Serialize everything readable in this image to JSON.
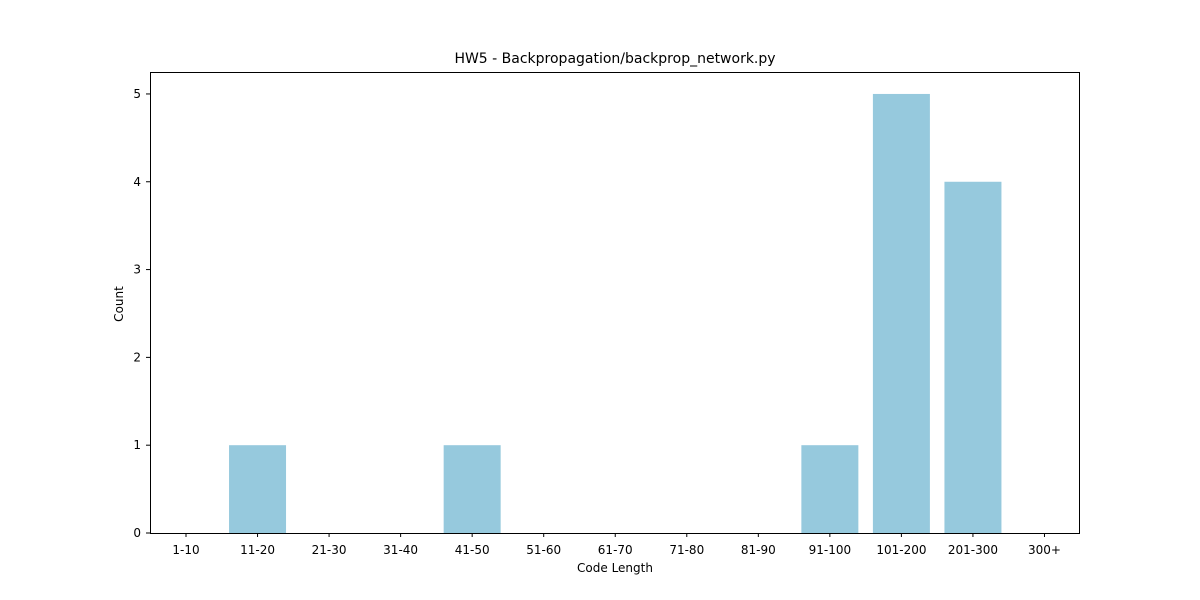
{
  "chart_data": {
    "type": "bar",
    "title": "HW5 - Backpropagation/backprop_network.py",
    "xlabel": "Code Length",
    "ylabel": "Count",
    "categories": [
      "1-10",
      "11-20",
      "21-30",
      "31-40",
      "41-50",
      "51-60",
      "61-70",
      "71-80",
      "81-90",
      "91-100",
      "101-200",
      "201-300",
      "300+"
    ],
    "values": [
      0,
      1,
      0,
      0,
      1,
      0,
      0,
      0,
      0,
      1,
      5,
      4,
      0
    ],
    "yticks": [
      "0",
      "1",
      "2",
      "3",
      "4",
      "5"
    ],
    "ylim": [
      0,
      5.25
    ],
    "grid": false,
    "bar_color": "#96c9dd"
  }
}
